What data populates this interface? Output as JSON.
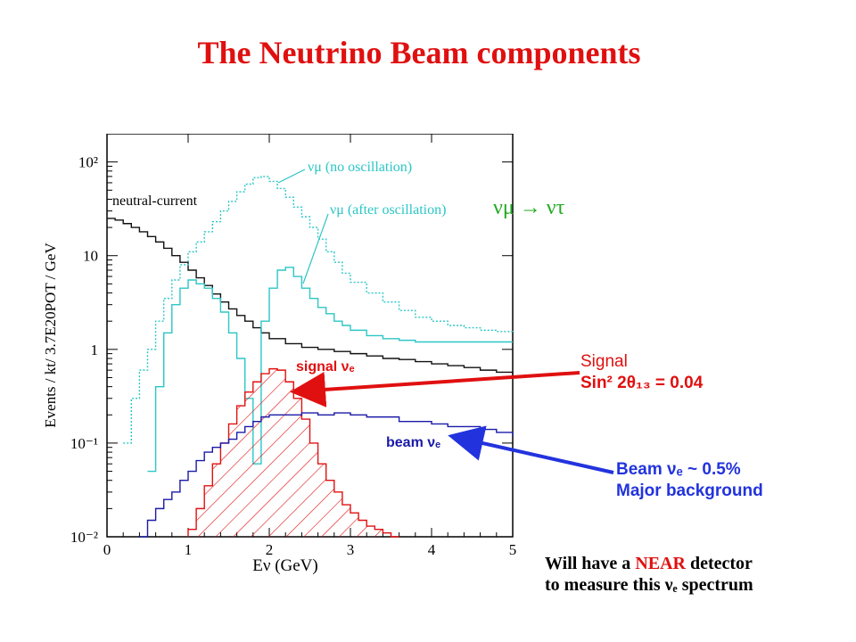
{
  "page": {
    "title": "The Neutrino Beam components"
  },
  "annotations": {
    "numu_to_nutau": "νμ → ντ",
    "signal_line1": "Signal",
    "signal_line2": "Sin² 2θ₁₃ = 0.04",
    "beam_line1": "Beam νₑ ~ 0.5%",
    "beam_line2": "Major background",
    "near_pre": "Will have a ",
    "near_word": "NEAR",
    "near_post": " detector",
    "near_line2": "to measure this νₑ spectrum"
  },
  "colors": {
    "title": "#e01010",
    "neutral_current": "#111111",
    "numu": "#2cc6c6",
    "signal": "#e01010",
    "beam": "#1a1aa8",
    "arrow_signal": "#e01010",
    "arrow_beam": "#2233dd",
    "green": "#22aa22"
  },
  "chart_data": {
    "type": "line",
    "xlabel": "Eν (GeV)",
    "ylabel": "Events / kt/ 3.7E20POT / GeV",
    "xlim": [
      0,
      5
    ],
    "ylim": [
      0.01,
      200
    ],
    "yscale": "log",
    "xticks": [
      "0",
      "1",
      "2",
      "3",
      "4",
      "5"
    ],
    "yticks": [
      "10⁻²",
      "10⁻¹",
      "1",
      "10",
      "10²"
    ],
    "labels": {
      "nc": "neutral-current",
      "numu_noosc": "νμ (no oscillation)",
      "numu_osc": "νμ (after oscillation)",
      "signal": "signal νₑ",
      "beam": "beam νₑ"
    },
    "series": [
      {
        "key": "nc",
        "style": "solid",
        "x": [
          0,
          0.1,
          0.2,
          0.3,
          0.4,
          0.5,
          0.6,
          0.7,
          0.8,
          0.9,
          1.0,
          1.1,
          1.2,
          1.3,
          1.4,
          1.5,
          1.6,
          1.7,
          1.8,
          1.9,
          2.0,
          2.2,
          2.4,
          2.6,
          2.8,
          3.0,
          3.2,
          3.4,
          3.6,
          3.8,
          4.0,
          4.2,
          4.4,
          4.6,
          4.8,
          5.0
        ],
        "y": [
          25,
          24,
          22,
          20,
          18,
          16,
          14,
          12,
          10,
          8.5,
          7.0,
          5.8,
          4.8,
          3.9,
          3.2,
          2.7,
          2.3,
          2.0,
          1.7,
          1.5,
          1.3,
          1.15,
          1.05,
          1.0,
          0.95,
          0.9,
          0.85,
          0.8,
          0.78,
          0.74,
          0.7,
          0.67,
          0.64,
          0.6,
          0.57,
          0.5
        ]
      },
      {
        "key": "numu_noosc",
        "style": "dotted",
        "x": [
          0.2,
          0.3,
          0.4,
          0.5,
          0.6,
          0.7,
          0.8,
          0.9,
          1.0,
          1.1,
          1.2,
          1.3,
          1.4,
          1.5,
          1.6,
          1.7,
          1.8,
          1.9,
          2.0,
          2.1,
          2.2,
          2.3,
          2.4,
          2.5,
          2.6,
          2.7,
          2.8,
          2.9,
          3.0,
          3.2,
          3.4,
          3.6,
          3.8,
          4.0,
          4.2,
          4.4,
          4.6,
          4.8,
          5.0
        ],
        "y": [
          0.1,
          0.3,
          0.6,
          1.0,
          2.0,
          3.5,
          5.5,
          8,
          11,
          14,
          18,
          23,
          30,
          38,
          48,
          58,
          68,
          70,
          62,
          52,
          42,
          33,
          26,
          20,
          15,
          11,
          8.5,
          6.5,
          5.2,
          4.0,
          3.2,
          2.6,
          2.2,
          2.0,
          1.8,
          1.7,
          1.6,
          1.55,
          1.5
        ]
      },
      {
        "key": "numu_osc",
        "style": "solid",
        "x": [
          0.5,
          0.6,
          0.7,
          0.8,
          0.9,
          1.0,
          1.1,
          1.2,
          1.3,
          1.4,
          1.5,
          1.6,
          1.7,
          1.8,
          1.9,
          2.0,
          2.1,
          2.2,
          2.3,
          2.4,
          2.5,
          2.6,
          2.7,
          2.8,
          2.9,
          3.0,
          3.2,
          3.4,
          3.6,
          3.8,
          4.0,
          4.2,
          4.4,
          4.6,
          4.8,
          5.0
        ],
        "y": [
          0.05,
          0.4,
          1.5,
          3.0,
          4.5,
          5.5,
          5.0,
          4.5,
          3.5,
          2.5,
          1.5,
          0.8,
          0.3,
          0.06,
          2.0,
          4.5,
          7,
          7.5,
          6,
          4.5,
          3.5,
          2.8,
          2.4,
          2.0,
          1.8,
          1.6,
          1.4,
          1.3,
          1.25,
          1.2,
          1.2,
          1.2,
          1.2,
          1.2,
          1.2,
          1.2
        ]
      },
      {
        "key": "signal",
        "style": "hatched",
        "x": [
          1.0,
          1.1,
          1.2,
          1.3,
          1.4,
          1.5,
          1.6,
          1.7,
          1.8,
          1.9,
          2.0,
          2.1,
          2.2,
          2.3,
          2.4,
          2.5,
          2.6,
          2.7,
          2.8,
          2.9,
          3.0,
          3.1,
          3.2,
          3.3,
          3.4,
          3.5
        ],
        "y": [
          0.012,
          0.02,
          0.035,
          0.06,
          0.1,
          0.16,
          0.25,
          0.35,
          0.45,
          0.55,
          0.62,
          0.6,
          0.45,
          0.3,
          0.18,
          0.1,
          0.06,
          0.04,
          0.03,
          0.022,
          0.018,
          0.015,
          0.013,
          0.012,
          0.011,
          0.01
        ]
      },
      {
        "key": "beam",
        "style": "solid",
        "x": [
          0.4,
          0.5,
          0.6,
          0.7,
          0.8,
          0.9,
          1.0,
          1.1,
          1.2,
          1.3,
          1.4,
          1.5,
          1.6,
          1.7,
          1.8,
          1.9,
          2.0,
          2.2,
          2.4,
          2.6,
          2.8,
          3.0,
          3.2,
          3.4,
          3.6,
          3.8,
          4.0,
          4.2,
          4.4,
          4.6,
          4.8,
          5.0
        ],
        "y": [
          0.01,
          0.015,
          0.02,
          0.025,
          0.03,
          0.04,
          0.05,
          0.065,
          0.08,
          0.09,
          0.1,
          0.11,
          0.13,
          0.15,
          0.17,
          0.19,
          0.2,
          0.2,
          0.21,
          0.2,
          0.21,
          0.2,
          0.19,
          0.19,
          0.17,
          0.17,
          0.16,
          0.15,
          0.15,
          0.14,
          0.13,
          0.12
        ]
      }
    ]
  }
}
